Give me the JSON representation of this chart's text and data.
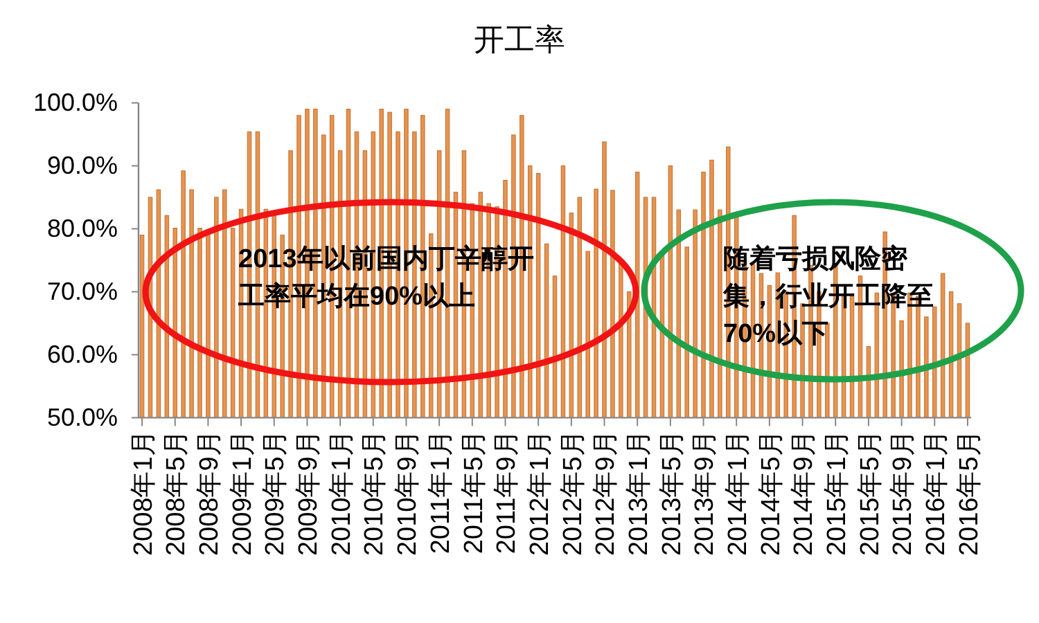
{
  "chart_data": {
    "type": "bar",
    "title": "开工率",
    "categories": [
      "2008年1月",
      null,
      null,
      null,
      "2008年5月",
      null,
      null,
      null,
      "2008年9月",
      null,
      null,
      null,
      "2009年1月",
      null,
      null,
      null,
      "2009年5月",
      null,
      null,
      null,
      "2009年9月",
      null,
      null,
      null,
      "2010年1月",
      null,
      null,
      null,
      "2010年5月",
      null,
      null,
      null,
      "2010年9月",
      null,
      null,
      null,
      "2011年1月",
      null,
      null,
      null,
      "2011年5月",
      null,
      null,
      null,
      "2011年9月",
      null,
      null,
      null,
      "2012年1月",
      null,
      null,
      null,
      "2012年5月",
      null,
      null,
      null,
      "2012年9月",
      null,
      null,
      null,
      "2013年1月",
      null,
      null,
      null,
      "2013年5月",
      null,
      null,
      null,
      "2013年9月",
      null,
      null,
      null,
      "2014年1月",
      null,
      null,
      null,
      "2014年5月",
      null,
      null,
      null,
      "2014年9月",
      null,
      null,
      null,
      "2015年1月",
      null,
      null,
      null,
      "2015年5月",
      null,
      null,
      null,
      "2015年9月",
      null,
      null,
      null,
      "2016年1月",
      null,
      null,
      null,
      "2016年5月"
    ],
    "values": [
      79.0,
      85.0,
      86.2,
      82.1,
      80.1,
      89.2,
      86.2,
      80.1,
      79.5,
      85.0,
      86.2,
      80.1,
      83.1,
      95.4,
      95.4,
      83.1,
      82.5,
      79.0,
      92.4,
      98.0,
      99.0,
      99.0,
      94.9,
      98.0,
      92.4,
      99.0,
      95.4,
      92.4,
      95.4,
      99.0,
      98.5,
      95.4,
      99.0,
      95.4,
      98.0,
      79.2,
      92.4,
      99.0,
      85.8,
      92.4,
      84.0,
      85.8,
      84.0,
      83.5,
      87.7,
      94.9,
      98.0,
      90.0,
      88.8,
      77.6,
      72.5,
      90.0,
      82.5,
      85.0,
      76.4,
      86.3,
      93.8,
      86.1,
      75.1,
      70.0,
      89.0,
      85.0,
      85.0,
      76.0,
      90.0,
      83.0,
      77.1,
      83.0,
      89.0,
      90.9,
      83.0,
      93.0,
      82.1,
      75.0,
      74.3,
      72.9,
      71.0,
      73.0,
      70.0,
      82.1,
      68.1,
      74.2,
      70.0,
      65.0,
      74.2,
      69.3,
      69.3,
      72.5,
      61.3,
      69.8,
      79.5,
      69.8,
      65.4,
      69.8,
      69.3,
      66.0,
      67.6,
      72.9,
      70.0,
      68.1,
      65.0
    ],
    "color": "#e6944f",
    "ylim": [
      50,
      100
    ],
    "yticks": [
      {
        "value": 50,
        "label": "50.0%"
      },
      {
        "value": 60,
        "label": "60.0%"
      },
      {
        "value": 70,
        "label": "70.0%"
      },
      {
        "value": 80,
        "label": "80.0%"
      },
      {
        "value": 90,
        "label": "90.0%"
      },
      {
        "value": 100,
        "label": "100.0%"
      }
    ],
    "annotations": [
      "2013年以前国内丁辛醇开工率平均在90%以上",
      "随着亏损风险密集，行业开工降至70%以下"
    ]
  }
}
